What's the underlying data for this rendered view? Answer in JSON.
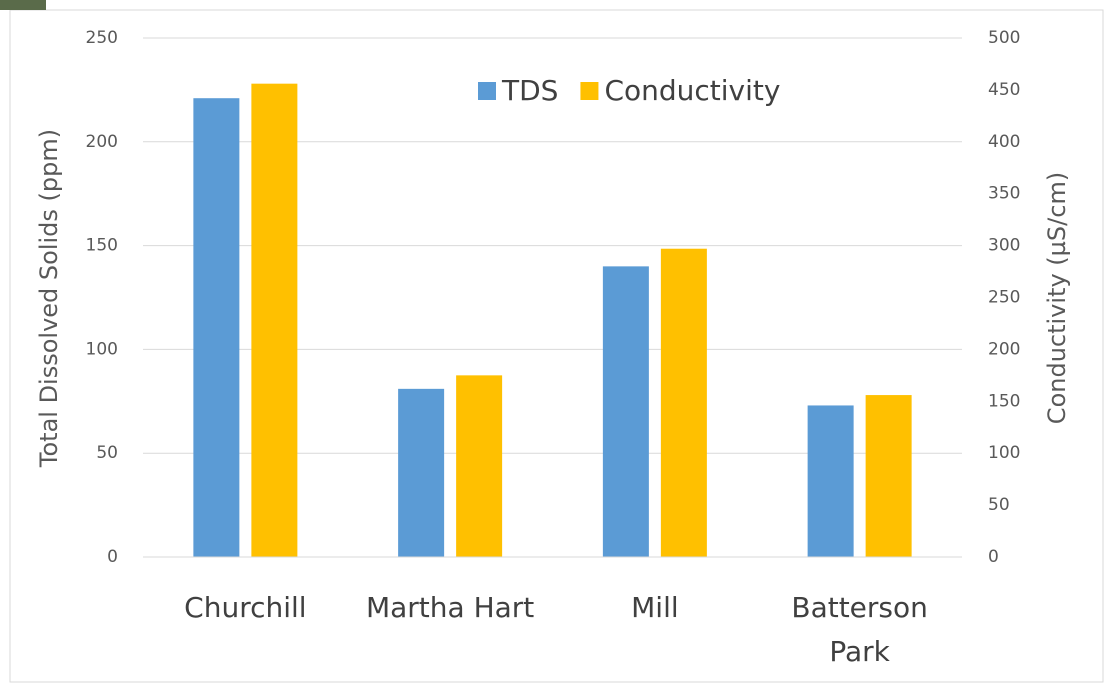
{
  "chart_data": {
    "type": "bar",
    "categories": [
      "Churchill",
      "Martha Hart",
      "Mill",
      "Batterson Park"
    ],
    "series": [
      {
        "name": "TDS",
        "color": "#5b9bd5",
        "values": [
          221,
          81,
          140,
          73
        ]
      },
      {
        "name": "Conductivity",
        "color": "#ffc000",
        "values": [
          456,
          175,
          297,
          156
        ],
        "axis": "y2"
      }
    ],
    "y_label": "Total Dissolved Solids (ppm)",
    "y2_label": "Conductivity (µS/cm)",
    "ylim": [
      0,
      250
    ],
    "yticks": [
      0,
      50,
      100,
      150,
      200,
      250
    ],
    "y2lim": [
      0,
      500
    ],
    "y2ticks": [
      0,
      50,
      100,
      150,
      200,
      250,
      300,
      350,
      400,
      450,
      500
    ],
    "grid": true,
    "legend": "top"
  }
}
